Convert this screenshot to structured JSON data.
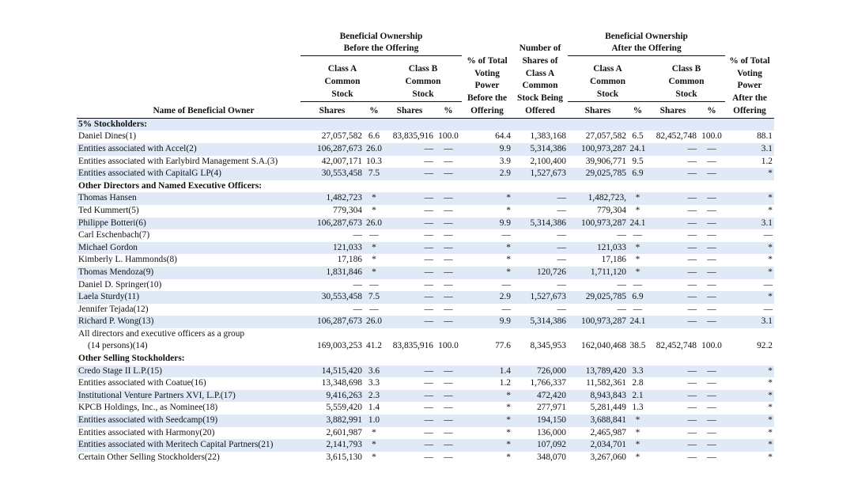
{
  "header": {
    "name_col": "Name of Beneficial Owner",
    "before": "Beneficial Ownership Before the Offering",
    "after": "Beneficial Ownership After the Offering",
    "voting_before": "% of Total Voting Power Before the Offering",
    "offered": "Number of Shares of Class A Common Stock Being Offered",
    "voting_after": "% of Total Voting Power After the Offering",
    "class_a": "Class A Common Stock",
    "class_b": "Class B Common Stock",
    "shares": "Shares",
    "pct": "%"
  },
  "rows": [
    {
      "section": "5% Stockholders:"
    },
    {
      "name": "Daniel Dines(1)",
      "cells": [
        "27,057,582",
        "6.6",
        "83,835,916",
        "100.0",
        "64.4",
        "1,383,168",
        "27,057,582",
        "6.5",
        "82,452,748",
        "100.0",
        "88.1"
      ]
    },
    {
      "name": "Entities associated with Accel(2)",
      "cells": [
        "106,287,673",
        "26.0",
        "—",
        "—",
        "9.9",
        "5,314,386",
        "100,973,287",
        "24.1",
        "—",
        "—",
        "3.1"
      ]
    },
    {
      "name": "Entities associated with Earlybird Management S.A.(3)",
      "cells": [
        "42,007,171",
        "10.3",
        "—",
        "—",
        "3.9",
        "2,100,400",
        "39,906,771",
        "9.5",
        "—",
        "—",
        "1.2"
      ]
    },
    {
      "name": "Entities associated with CapitalG LP(4)",
      "cells": [
        "30,553,458",
        "7.5",
        "—",
        "—",
        "2.9",
        "1,527,673",
        "29,025,785",
        "6.9",
        "—",
        "—",
        "*"
      ]
    },
    {
      "section": "Other Directors and Named Executive Officers:"
    },
    {
      "name": "Thomas Hansen",
      "cells": [
        "1,482,723",
        "*",
        "—",
        "—",
        "*",
        "—",
        "1,482,723,",
        "*",
        "—",
        "—",
        "*"
      ]
    },
    {
      "name": "Ted Kummert(5)",
      "cells": [
        "779,304",
        "*",
        "—",
        "—",
        "*",
        "—",
        "779,304",
        "*",
        "—",
        "—",
        "*"
      ]
    },
    {
      "name": "Philippe Botteri(6)",
      "cells": [
        "106,287,673",
        "26.0",
        "—",
        "—",
        "9.9",
        "5,314,386",
        "100,973,287",
        "24.1",
        "—",
        "—",
        "3.1"
      ]
    },
    {
      "name": "Carl Eschenbach(7)",
      "cells": [
        "—",
        "—",
        "—",
        "—",
        "—",
        "—",
        "—",
        "—",
        "—",
        "—",
        "—"
      ]
    },
    {
      "name": "Michael Gordon",
      "cells": [
        "121,033",
        "*",
        "—",
        "—",
        "*",
        "—",
        "121,033",
        "*",
        "—",
        "—",
        "*"
      ]
    },
    {
      "name": "Kimberly L. Hammonds(8)",
      "cells": [
        "17,186",
        "*",
        "—",
        "—",
        "*",
        "—",
        "17,186",
        "*",
        "—",
        "—",
        "*"
      ]
    },
    {
      "name": "Thomas Mendoza(9)",
      "cells": [
        "1,831,846",
        "*",
        "—",
        "—",
        "*",
        "120,726",
        "1,711,120",
        "*",
        "—",
        "—",
        "*"
      ]
    },
    {
      "name": "Daniel D. Springer(10)",
      "cells": [
        "—",
        "—",
        "—",
        "—",
        "—",
        "—",
        "—",
        "—",
        "—",
        "—",
        "—"
      ]
    },
    {
      "name": "Laela Sturdy(11)",
      "cells": [
        "30,553,458",
        "7.5",
        "—",
        "—",
        "2.9",
        "1,527,673",
        "29,025,785",
        "6.9",
        "—",
        "—",
        "*"
      ]
    },
    {
      "name": "Jennifer Tejada(12)",
      "cells": [
        "—",
        "—",
        "—",
        "—",
        "—",
        "—",
        "—",
        "—",
        "—",
        "—",
        "—"
      ]
    },
    {
      "name": "Richard P. Wong(13)",
      "cells": [
        "106,287,673",
        "26.0",
        "—",
        "—",
        "9.9",
        "5,314,386",
        "100,973,287",
        "24.1",
        "—",
        "—",
        "3.1"
      ]
    },
    {
      "name": "All directors and executive officers as a group",
      "name_cont": "(14 persons)(14)",
      "cells": [
        "169,003,253",
        "41.2",
        "83,835,916",
        "100.0",
        "77.6",
        "8,345,953",
        "162,040,468",
        "38.5",
        "82,452,748",
        "100.0",
        "92.2"
      ]
    },
    {
      "section": "Other Selling Stockholders:"
    },
    {
      "name": "Credo Stage II L.P.(15)",
      "cells": [
        "14,515,420",
        "3.6",
        "—",
        "—",
        "1.4",
        "726,000",
        "13,789,420",
        "3.3",
        "—",
        "—",
        "*"
      ]
    },
    {
      "name": "Entities associated with Coatue(16)",
      "cells": [
        "13,348,698",
        "3.3",
        "—",
        "—",
        "1.2",
        "1,766,337",
        "11,582,361",
        "2.8",
        "—",
        "—",
        "*"
      ]
    },
    {
      "name": "Institutional Venture Partners XVI, L.P.(17)",
      "cells": [
        "9,416,263",
        "2.3",
        "—",
        "—",
        "*",
        "472,420",
        "8,943,843",
        "2.1",
        "—",
        "—",
        "*"
      ]
    },
    {
      "name": "KPCB Holdings, Inc., as Nominee(18)",
      "cells": [
        "5,559,420",
        "1.4",
        "—",
        "—",
        "*",
        "277,971",
        "5,281,449",
        "1.3",
        "—",
        "—",
        "*"
      ]
    },
    {
      "name": "Entities associated with Seedcamp(19)",
      "cells": [
        "3,882,991",
        "1.0",
        "—",
        "—",
        "*",
        "194,150",
        "3,688,841",
        "*",
        "—",
        "—",
        "*"
      ]
    },
    {
      "name": "Entities associated with Harmony(20)",
      "cells": [
        "2,601,987",
        "*",
        "—",
        "—",
        "*",
        "136,000",
        "2,465,987",
        "*",
        "—",
        "—",
        "*"
      ]
    },
    {
      "name": "Entities associated with Meritech Capital Partners(21)",
      "cells": [
        "2,141,793",
        "*",
        "—",
        "—",
        "*",
        "107,092",
        "2,034,701",
        "*",
        "—",
        "—",
        "*"
      ]
    },
    {
      "name": "Certain Other Selling Stockholders(22)",
      "cells": [
        "3,615,130",
        "*",
        "—",
        "—",
        "*",
        "348,070",
        "3,267,060",
        "*",
        "—",
        "—",
        "*"
      ]
    }
  ]
}
